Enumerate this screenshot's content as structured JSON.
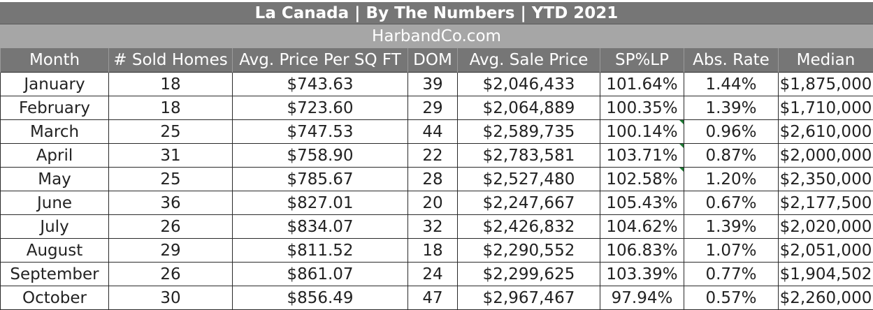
{
  "title": "La Canada  |  By The Numbers   |  YTD 2021",
  "subtitle": "HarbandCo.com",
  "columns": [
    "Month",
    "# Sold Homes",
    "Avg. Price Per SQ FT",
    "DOM",
    "Avg. Sale Price",
    "SP%LP",
    "Abs. Rate",
    "Median"
  ],
  "rows": [
    [
      "January",
      "18",
      "$743.63",
      "39",
      "$2,046,433",
      "101.64%",
      "1.44%",
      "$1,875,000"
    ],
    [
      "February",
      "18",
      "$723.60",
      "29",
      "$2,064,889",
      "100.35%",
      "1.39%",
      "$1,710,000"
    ],
    [
      "March",
      "25",
      "$747.53",
      "44",
      "$2,589,735",
      "100.14%",
      "0.96%",
      "$2,610,000"
    ],
    [
      "April",
      "31",
      "$758.90",
      "22",
      "$2,783,581",
      "103.71%",
      "0.87%",
      "$2,000,000"
    ],
    [
      "May",
      "25",
      "$785.67",
      "28",
      "$2,527,480",
      "102.58%",
      "1.20%",
      "$2,350,000"
    ],
    [
      "June",
      "36",
      "$827.01",
      "20",
      "$2,247,667",
      "105.43%",
      "0.67%",
      "$2,177,500"
    ],
    [
      "July",
      "26",
      "$834.07",
      "32",
      "$2,426,832",
      "104.62%",
      "1.39%",
      "$2,020,000"
    ],
    [
      "August",
      "29",
      "$811.52",
      "18",
      "$2,290,552",
      "106.83%",
      "1.07%",
      "$2,051,000"
    ],
    [
      "September",
      "26",
      "$861.07",
      "24",
      "$2,299,625",
      "103.39%",
      "0.77%",
      "$1,904,502"
    ],
    [
      "October",
      "30",
      "$856.49",
      "47",
      "$2,967,467",
      "97.94%",
      "0.57%",
      "$2,260,000"
    ]
  ],
  "error_flag_color": "#1e7b34",
  "header_bg": "#767676",
  "subtitle_bg": "#a6a6a6"
}
